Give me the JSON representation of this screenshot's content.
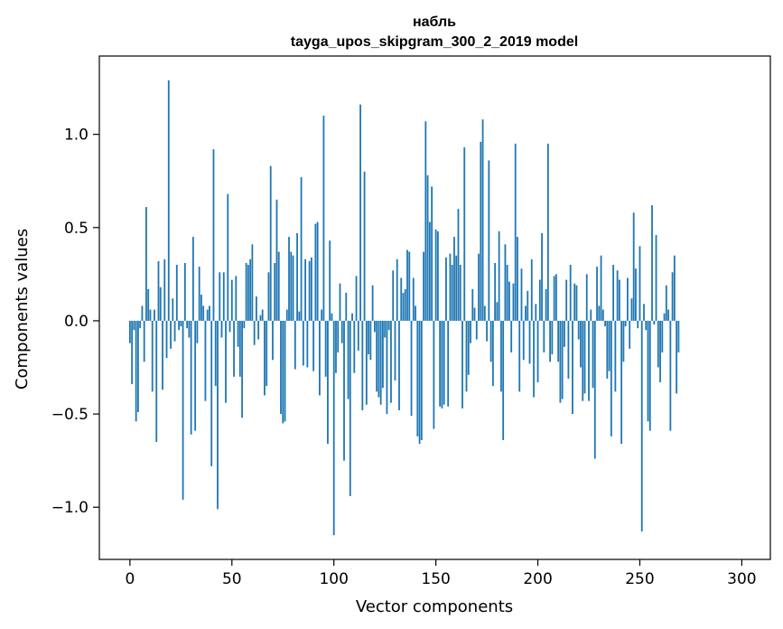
{
  "chart_data": {
    "type": "bar",
    "title_line1": "набль",
    "title_line2": "tayga_upos_skipgram_300_2_2019 model",
    "xlabel": "Vector components",
    "ylabel": "Components values",
    "xlim": [
      -15,
      314
    ],
    "ylim": [
      -1.28,
      1.42
    ],
    "xticks": [
      0,
      50,
      100,
      150,
      200,
      250,
      300
    ],
    "xtick_labels": [
      "0",
      "50",
      "100",
      "150",
      "200",
      "250",
      "300"
    ],
    "yticks": [
      -1.0,
      -0.5,
      0.0,
      0.5,
      1.0
    ],
    "ytick_labels": [
      "−1.0",
      "−0.5",
      "0.0",
      "0.5",
      "1.0"
    ],
    "color": "#1f77b4",
    "values": [
      -0.12,
      -0.34,
      -0.05,
      -0.54,
      -0.49,
      -0.04,
      0.08,
      -0.22,
      0.61,
      0.17,
      0.06,
      -0.38,
      0.06,
      -0.65,
      0.32,
      0.18,
      -0.37,
      0.33,
      -0.2,
      1.29,
      -0.15,
      0.12,
      -0.11,
      0.3,
      -0.05,
      -0.03,
      -0.96,
      0.31,
      -0.04,
      -0.09,
      -0.61,
      0.45,
      -0.59,
      -0.12,
      0.29,
      0.14,
      0.08,
      -0.43,
      0.06,
      0.08,
      -0.78,
      0.92,
      -0.35,
      -1.01,
      0.26,
      -0.09,
      0.26,
      -0.44,
      0.68,
      -0.06,
      0.22,
      -0.3,
      0.24,
      -0.14,
      -0.3,
      -0.52,
      -0.04,
      0.31,
      0.3,
      0.33,
      0.41,
      -0.13,
      0.13,
      -0.1,
      0.03,
      0.06,
      -0.4,
      -0.35,
      0.26,
      0.83,
      -0.21,
      0.31,
      0.65,
      0.37,
      -0.5,
      -0.55,
      -0.54,
      0.06,
      0.45,
      0.37,
      0.35,
      -0.26,
      0.47,
      0.05,
      0.77,
      -0.24,
      0.33,
      -0.25,
      0.32,
      0.34,
      -0.27,
      0.52,
      0.53,
      -0.4,
      0.06,
      1.1,
      -0.3,
      -0.66,
      0.43,
      0.04,
      -1.15,
      -0.28,
      -0.17,
      0.2,
      -0.12,
      -0.75,
      0.15,
      -0.42,
      -0.94,
      0.04,
      -0.28,
      0.24,
      -0.16,
      1.16,
      -0.48,
      0.8,
      -0.45,
      -0.18,
      -0.21,
      0.19,
      -0.06,
      -0.38,
      -0.41,
      -0.45,
      -0.36,
      -0.09,
      -0.5,
      -0.05,
      -0.44,
      0.27,
      -0.32,
      0.33,
      -0.48,
      0.23,
      0.15,
      0.17,
      0.38,
      0.37,
      -0.51,
      0.23,
      0.08,
      -0.62,
      -0.66,
      -0.64,
      0.37,
      1.07,
      0.78,
      0.53,
      0.72,
      -0.58,
      0.49,
      0.48,
      -0.46,
      -0.47,
      -0.45,
      0.34,
      -0.46,
      0.36,
      0.3,
      0.45,
      0.35,
      0.6,
      0.3,
      -0.47,
      0.93,
      -0.38,
      -0.29,
      -0.12,
      0.17,
      0.07,
      -0.1,
      0.36,
      0.96,
      1.08,
      0.08,
      -0.11,
      0.86,
      -0.22,
      -0.35,
      0.31,
      0.1,
      0.48,
      -0.38,
      -0.64,
      0.41,
      0.3,
      0.21,
      -0.17,
      0.2,
      0.95,
      0.45,
      -0.38,
      0.28,
      -0.21,
      0.08,
      0.16,
      -0.23,
      0.33,
      -0.41,
      0.09,
      -0.33,
      0.22,
      0.47,
      -0.17,
      0.17,
      0.95,
      -0.22,
      -0.18,
      0.24,
      0.25,
      -0.22,
      -0.44,
      -0.42,
      -0.14,
      0.22,
      -0.31,
      0.3,
      -0.5,
      0.2,
      0.19,
      -0.1,
      -0.25,
      -0.43,
      -0.39,
      0.25,
      -0.43,
      0.06,
      -0.36,
      -0.74,
      0.29,
      0.08,
      0.35,
      0.06,
      -0.03,
      -0.31,
      -0.27,
      -0.62,
      0.3,
      -0.38,
      0.27,
      0.22,
      -0.66,
      -0.22,
      -0.03,
      0.23,
      -0.15,
      0.12,
      0.58,
      0.28,
      -0.04,
      0.4,
      -1.13,
      0.09,
      -0.05,
      -0.54,
      -0.59,
      0.62,
      -0.02,
      0.46,
      -0.25,
      -0.33,
      -0.17,
      0.04,
      0.19,
      0.06,
      -0.59,
      0.26,
      0.35,
      -0.39,
      -0.17
    ]
  }
}
